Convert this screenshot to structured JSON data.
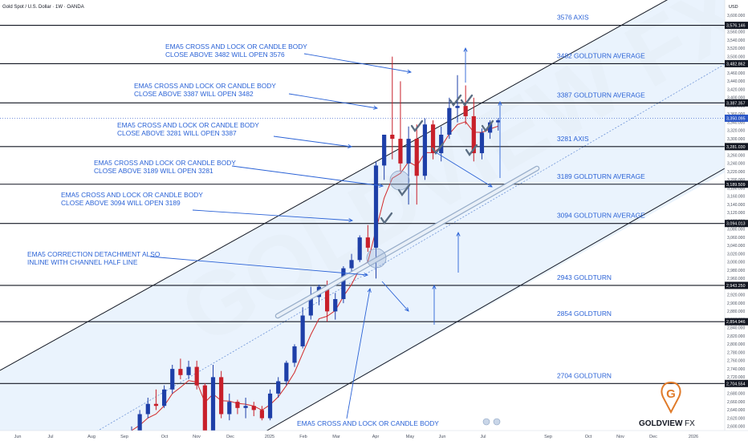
{
  "header": {
    "title": "Gold Spot / U.S. Dollar · 1W · OANDA",
    "currency": "USD"
  },
  "watermark": {
    "text": "GOLDVIEW FX",
    "logo_letter": "G",
    "logo_word": "GOLDVIEW",
    "logo_suffix": "FX"
  },
  "colors": {
    "up": "#1e3fa8",
    "down": "#c8202a",
    "ema": "#d22a2a",
    "annotation": "#2a62d6",
    "channel_fill": "#d9e9fb",
    "price_label_bg": "#131722",
    "current_price_bg": "#2a56c6",
    "brand": "#e07b2a"
  },
  "chart_data": {
    "type": "candlestick",
    "ylim": [
      2590,
      3630
    ],
    "y_ticks": [
      2600,
      2620,
      2640,
      2660,
      2680,
      2700,
      2720,
      2740,
      2760,
      2780,
      2800,
      2820,
      2840,
      2860,
      2880,
      2900,
      2920,
      2940,
      2960,
      2980,
      3000,
      3020,
      3040,
      3060,
      3080,
      3100,
      3120,
      3140,
      3160,
      3180,
      3200,
      3220,
      3240,
      3260,
      3280,
      3300,
      3320,
      3340,
      3360,
      3380,
      3400,
      3420,
      3440,
      3460,
      3480,
      3500,
      3520,
      3540,
      3560,
      3580,
      3600
    ],
    "x_ticks": [
      "Jun",
      "Jul",
      "Aug",
      "Sep",
      "Oct",
      "Nov",
      "Dec",
      "2025",
      "Feb",
      "Mar",
      "Apr",
      "May",
      "Jun",
      "Jul",
      "Sep",
      "Oct",
      "Nov",
      "Dec",
      "2026"
    ],
    "candles": [
      {
        "o": 2575,
        "h": 2600,
        "l": 2560,
        "c": 2590
      },
      {
        "o": 2590,
        "h": 2640,
        "l": 2580,
        "c": 2630
      },
      {
        "o": 2630,
        "h": 2670,
        "l": 2620,
        "c": 2655
      },
      {
        "o": 2655,
        "h": 2690,
        "l": 2640,
        "c": 2650
      },
      {
        "o": 2650,
        "h": 2700,
        "l": 2645,
        "c": 2690
      },
      {
        "o": 2690,
        "h": 2750,
        "l": 2680,
        "c": 2740
      },
      {
        "o": 2740,
        "h": 2765,
        "l": 2715,
        "c": 2725
      },
      {
        "o": 2725,
        "h": 2760,
        "l": 2715,
        "c": 2745
      },
      {
        "o": 2745,
        "h": 2760,
        "l": 2690,
        "c": 2700
      },
      {
        "o": 2700,
        "h": 2705,
        "l": 2540,
        "c": 2560
      },
      {
        "o": 2560,
        "h": 2750,
        "l": 2555,
        "c": 2720
      },
      {
        "o": 2720,
        "h": 2735,
        "l": 2620,
        "c": 2630
      },
      {
        "o": 2630,
        "h": 2680,
        "l": 2615,
        "c": 2660
      },
      {
        "o": 2660,
        "h": 2665,
        "l": 2630,
        "c": 2645
      },
      {
        "o": 2645,
        "h": 2670,
        "l": 2620,
        "c": 2650
      },
      {
        "o": 2650,
        "h": 2660,
        "l": 2625,
        "c": 2640
      },
      {
        "o": 2640,
        "h": 2650,
        "l": 2615,
        "c": 2620
      },
      {
        "o": 2620,
        "h": 2690,
        "l": 2615,
        "c": 2680
      },
      {
        "o": 2680,
        "h": 2720,
        "l": 2670,
        "c": 2710
      },
      {
        "o": 2710,
        "h": 2760,
        "l": 2700,
        "c": 2755
      },
      {
        "o": 2755,
        "h": 2800,
        "l": 2745,
        "c": 2795
      },
      {
        "o": 2795,
        "h": 2890,
        "l": 2790,
        "c": 2870
      },
      {
        "o": 2870,
        "h": 2940,
        "l": 2860,
        "c": 2915
      },
      {
        "o": 2915,
        "h": 2945,
        "l": 2895,
        "c": 2940
      },
      {
        "o": 2940,
        "h": 2955,
        "l": 2855,
        "c": 2880
      },
      {
        "o": 2880,
        "h": 2925,
        "l": 2860,
        "c": 2910
      },
      {
        "o": 2910,
        "h": 2990,
        "l": 2900,
        "c": 2985
      },
      {
        "o": 2985,
        "h": 3020,
        "l": 2975,
        "c": 3005
      },
      {
        "o": 3005,
        "h": 3065,
        "l": 3000,
        "c": 3060
      },
      {
        "o": 3060,
        "h": 3090,
        "l": 3025,
        "c": 3035
      },
      {
        "o": 3035,
        "h": 3245,
        "l": 2960,
        "c": 3235
      },
      {
        "o": 3235,
        "h": 3310,
        "l": 3200,
        "c": 3310
      },
      {
        "o": 3310,
        "h": 3500,
        "l": 3250,
        "c": 3300
      },
      {
        "o": 3300,
        "h": 3440,
        "l": 3220,
        "c": 3240
      },
      {
        "o": 3240,
        "h": 3330,
        "l": 3140,
        "c": 3300
      },
      {
        "o": 3300,
        "h": 3335,
        "l": 3140,
        "c": 3210
      },
      {
        "o": 3210,
        "h": 3350,
        "l": 3200,
        "c": 3335
      },
      {
        "o": 3335,
        "h": 3345,
        "l": 3250,
        "c": 3265
      },
      {
        "o": 3265,
        "h": 3330,
        "l": 3245,
        "c": 3310
      },
      {
        "o": 3310,
        "h": 3400,
        "l": 3300,
        "c": 3375
      },
      {
        "o": 3375,
        "h": 3455,
        "l": 3340,
        "c": 3380
      },
      {
        "o": 3380,
        "h": 3430,
        "l": 3335,
        "c": 3355
      },
      {
        "o": 3355,
        "h": 3400,
        "l": 3245,
        "c": 3265
      },
      {
        "o": 3265,
        "h": 3325,
        "l": 3250,
        "c": 3315
      },
      {
        "o": 3315,
        "h": 3345,
        "l": 3300,
        "c": 3340
      },
      {
        "o": 3340,
        "h": 3350,
        "l": 3320,
        "c": 3345
      }
    ],
    "levels": [
      {
        "value": 3576.146,
        "label": "3576 AXIS",
        "price_label": "3,576.146"
      },
      {
        "value": 3482.862,
        "label": "3482 GOLDTURN AVERAGE",
        "price_label": "3,482.862"
      },
      {
        "value": 3387.357,
        "label": "3387 GOLDTURN AVERAGE",
        "price_label": "3,387.357"
      },
      {
        "value": 3281.03,
        "label": "3281 AXIS",
        "price_label": "3,281.030"
      },
      {
        "value": 3189.509,
        "label": "3189 GOLDTURN AVERAGE",
        "price_label": "3,189.509"
      },
      {
        "value": 3094.013,
        "label": "3094 GOLDTURN AVERAGE",
        "price_label": "3,094.013"
      },
      {
        "value": 2943.25,
        "label": "2943 GOLDTURN",
        "price_label": "2,943.250"
      },
      {
        "value": 2854.946,
        "label": "2854 GOLDTURN",
        "price_label": "2,854.946"
      },
      {
        "value": 2704.554,
        "label": "2704 GOLDTURN",
        "price_label": "2,704.554"
      }
    ],
    "current_price": {
      "value": 3350.095,
      "label": "3,350.095"
    },
    "annotations": [
      {
        "lines": [
          "EMA5 CROSS AND LOCK OR CANDLE BODY",
          "CLOSE ABOVE 3482 WILL OPEN 3576"
        ]
      },
      {
        "lines": [
          "EMA5 CROSS AND LOCK OR CANDLE BODY",
          "CLOSE ABOVE 3387 WILL OPEN 3482"
        ]
      },
      {
        "lines": [
          "EMA5 CROSS AND LOCK OR CANDLE BODY",
          "CLOSE ABOVE 3281 WILL OPEN 3387"
        ]
      },
      {
        "lines": [
          "EMA5 CROSS AND LOCK OR CANDLE BODY",
          "CLOSE ABOVE 3189 WILL OPEN 3281"
        ]
      },
      {
        "lines": [
          "EMA5 CROSS AND LOCK OR CANDLE BODY",
          "CLOSE ABOVE 3094 WILL OPEN 3189"
        ]
      },
      {
        "lines": [
          "EMA5 CORRECTION DETACHMENT ALSO",
          "INLINE WITH CHANNEL HALF LINE"
        ]
      },
      {
        "lines": [
          "EMA5 CROSS AND LOCK OR CANDLE BODY"
        ]
      }
    ]
  }
}
